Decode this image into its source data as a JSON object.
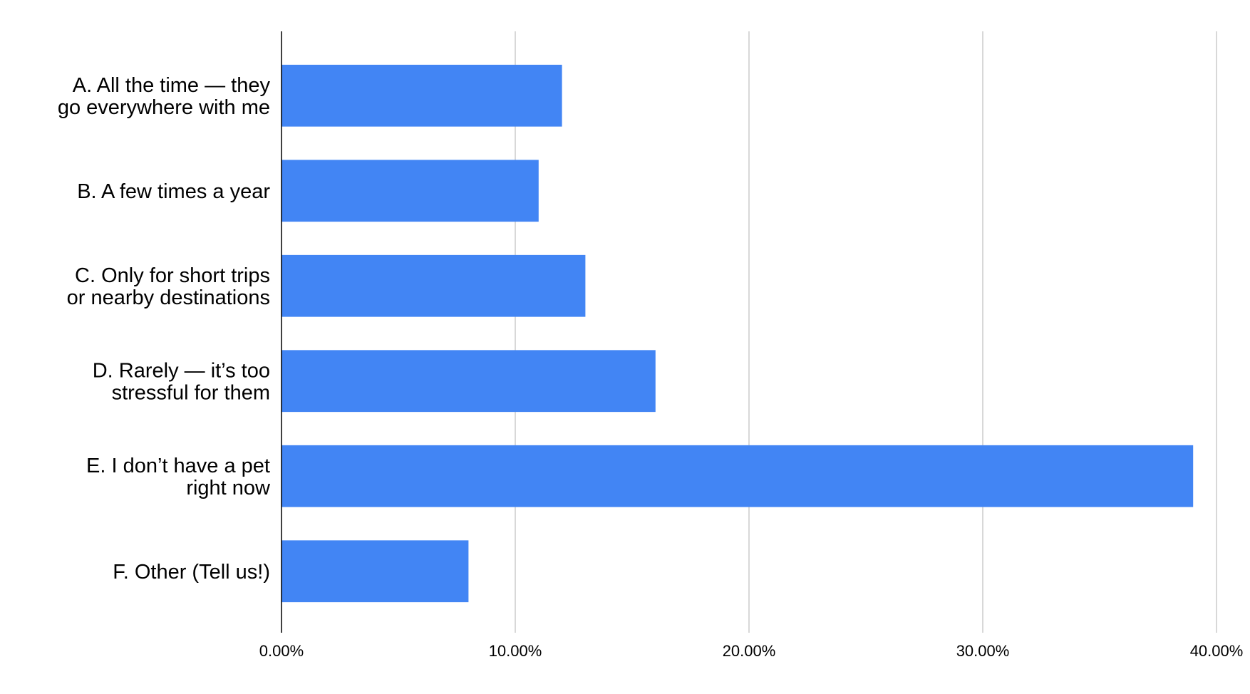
{
  "chart_data": {
    "type": "bar",
    "orientation": "horizontal",
    "categories": [
      "A. All the time — they\ngo everywhere with me",
      "B. A few times a year",
      "C. Only for short trips\nor nearby destinations",
      "D. Rarely — it’s too\nstressful for them",
      "E. I don’t have a pet\nright now",
      "F. Other (Tell us!)"
    ],
    "values": [
      12,
      11,
      13,
      16,
      39,
      8
    ],
    "color": "#4285f4",
    "xlim": [
      0,
      40
    ],
    "xticks": [
      {
        "value": 0,
        "label": "0.00%"
      },
      {
        "value": 10,
        "label": "10.00%"
      },
      {
        "value": 20,
        "label": "20.00%"
      },
      {
        "value": 30,
        "label": "30.00%"
      },
      {
        "value": 40,
        "label": "40.00%"
      }
    ],
    "grid": true
  }
}
